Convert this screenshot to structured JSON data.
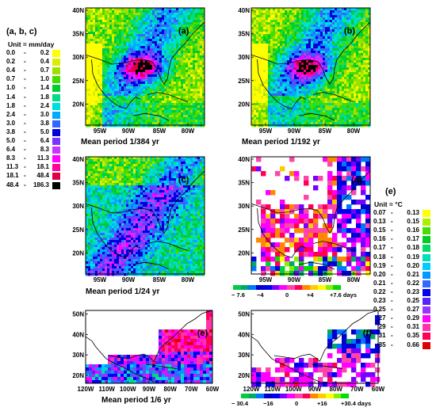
{
  "legend_left": {
    "title": "(a, b, c)",
    "unit": "Unit = mm/day",
    "items": [
      {
        "low": "0.0",
        "high": "0.2",
        "color": "#ffff00"
      },
      {
        "low": "0.2",
        "high": "0.4",
        "color": "#d8f000"
      },
      {
        "low": "0.4",
        "high": "0.7",
        "color": "#a0e000"
      },
      {
        "low": "0.7",
        "high": "1.0",
        "color": "#44dd00"
      },
      {
        "low": "1.0",
        "high": "1.4",
        "color": "#00cc33"
      },
      {
        "low": "1.4",
        "high": "1.8",
        "color": "#00dd88"
      },
      {
        "low": "1.8",
        "high": "2.4",
        "color": "#00dddd"
      },
      {
        "low": "2.4",
        "high": "3.0",
        "color": "#00aaff"
      },
      {
        "low": "3.0",
        "high": "3.8",
        "color": "#3366ff"
      },
      {
        "low": "3.8",
        "high": "5.0",
        "color": "#0000dd"
      },
      {
        "low": "5.0",
        "high": "6.4",
        "color": "#7733ff"
      },
      {
        "low": "6.4",
        "high": "8.3",
        "color": "#cc33ff"
      },
      {
        "low": "8.3",
        "high": "11.3",
        "color": "#ff00ff"
      },
      {
        "low": "11.3",
        "high": "18.1",
        "color": "#ff0099"
      },
      {
        "low": "18.1",
        "high": "48.4",
        "color": "#dd0044"
      },
      {
        "low": "48.4",
        "high": "186.3",
        "color": "#000000"
      }
    ]
  },
  "legend_right": {
    "title": "(e)",
    "unit": "Unit = °C",
    "items": [
      {
        "low": "0.07",
        "high": "0.13",
        "color": "#ffff00"
      },
      {
        "low": "0.13",
        "high": "0.15",
        "color": "#aaee00"
      },
      {
        "low": "0.15",
        "high": "0.16",
        "color": "#44dd00"
      },
      {
        "low": "0.16",
        "high": "0.17",
        "color": "#00cc22"
      },
      {
        "low": "0.17",
        "high": "0.18",
        "color": "#00dd66"
      },
      {
        "low": "0.18",
        "high": "0.19",
        "color": "#00ddbb"
      },
      {
        "low": "0.19",
        "high": "0.20",
        "color": "#00ccff"
      },
      {
        "low": "0.20",
        "high": "0.21",
        "color": "#0099ff"
      },
      {
        "low": "0.21",
        "high": "0.22",
        "color": "#3366ff"
      },
      {
        "low": "0.22",
        "high": "0.23",
        "color": "#0000ee"
      },
      {
        "low": "0.23",
        "high": "0.25",
        "color": "#5522ff"
      },
      {
        "low": "0.25",
        "high": "0.27",
        "color": "#9933ff"
      },
      {
        "low": "0.27",
        "high": "0.29",
        "color": "#ff00ff"
      },
      {
        "low": "0.29",
        "high": "0.31",
        "color": "#ff33aa"
      },
      {
        "low": "0.31",
        "high": "0.35",
        "color": "#ff0055"
      },
      {
        "low": "0.35",
        "high": "0.66",
        "color": "#dd0000"
      }
    ]
  },
  "panels": {
    "a": {
      "label": "(a)",
      "caption": "Mean period   1/384 yr",
      "yticks": [
        "40N",
        "35N",
        "30N",
        "25N",
        "20N"
      ],
      "xticks": [
        "95W",
        "90W",
        "85W",
        "80W"
      ]
    },
    "b": {
      "label": "(b)",
      "caption": "Mean period   1/192 yr",
      "yticks": [
        "40N",
        "35N",
        "30N",
        "25N",
        "20N"
      ],
      "xticks": [
        "95W",
        "90W",
        "85W",
        "80W"
      ]
    },
    "c": {
      "label": "(c)",
      "caption": "Mean period  1/24 yr",
      "yticks": [
        "40N",
        "35N",
        "30N",
        "25N",
        "20N"
      ],
      "xticks": [
        "95W",
        "90W",
        "85W",
        "80W"
      ]
    },
    "d": {
      "label": "(d)",
      "caption": "",
      "yticks": [
        "40N",
        "35N",
        "30N",
        "25N",
        "20N"
      ],
      "xticks": [
        "95W",
        "90W",
        "85W",
        "80W"
      ]
    },
    "e": {
      "label": "(e)",
      "caption": "Mean period  1/6 yr",
      "yticks": [
        "50N",
        "40N",
        "30N",
        "20N"
      ],
      "xticks": [
        "120W",
        "110W",
        "100W",
        "90W",
        "80W",
        "70W",
        "60W"
      ]
    },
    "f": {
      "label": "(f)",
      "caption": "",
      "yticks": [
        "50N",
        "40N",
        "30N",
        "20N"
      ],
      "xticks": [
        "120W",
        "110W",
        "100W",
        "90W",
        "80W",
        "70W",
        "60W"
      ]
    }
  },
  "colorbar_d": {
    "ticks": [
      "− 7.6",
      "−4",
      "0",
      "+4",
      "+7.6 days"
    ],
    "colors": [
      "#00cc44",
      "#00aa66",
      "#0077ff",
      "#0000cc",
      "#0000ee",
      "#7700ff",
      "#ff00ff",
      "#ff44aa",
      "#ff0055",
      "#ff8800",
      "#ffcc00",
      "#ffff00",
      "#88ee00",
      "#00dd00"
    ]
  },
  "colorbar_f": {
    "ticks": [
      "− 30.4",
      "−16",
      "0",
      "+16",
      "+30.4 days"
    ],
    "colors": [
      "#00cc44",
      "#00aa66",
      "#0077ff",
      "#0000cc",
      "#0000ee",
      "#7700ff",
      "#ff00ff",
      "#ff44aa",
      "#ff0055",
      "#ff8800",
      "#ffcc00",
      "#ffff00",
      "#88ee00",
      "#00dd00"
    ]
  }
}
